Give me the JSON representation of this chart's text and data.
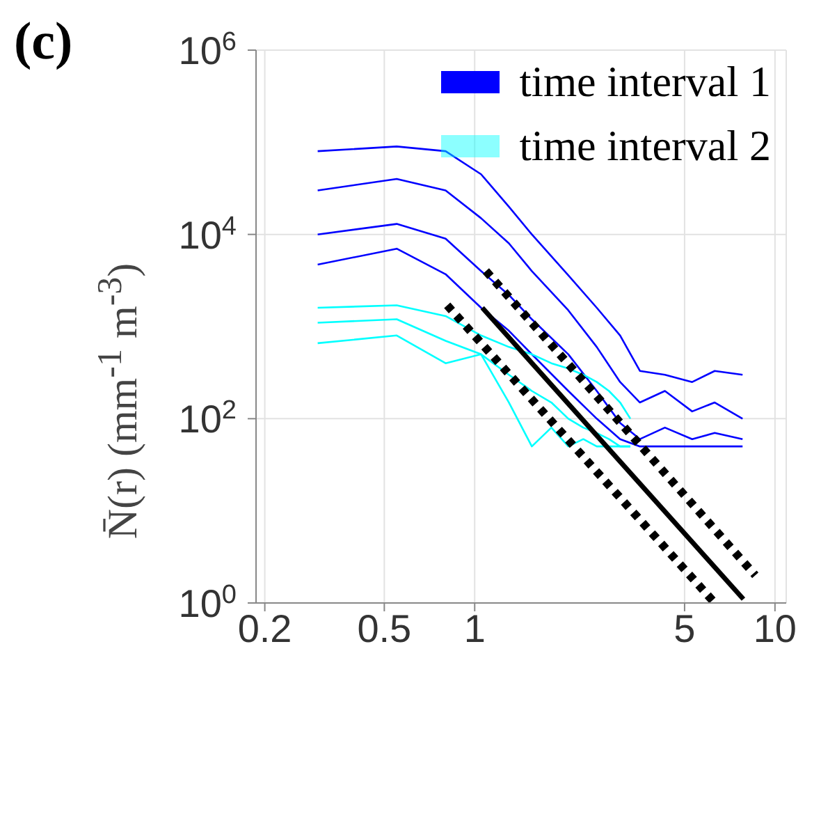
{
  "chart_data": {
    "type": "line",
    "title": "(c)",
    "ylabel": "N̄(r) (mm$^{-1}$ m$^{-3}$)",
    "log": "xy",
    "grid": true,
    "legend": "top right",
    "line_style": "solid",
    "marker": "none",
    "xlim": [
      0.187,
      10.9
    ],
    "xticks": [
      0.2,
      0.5,
      1,
      5,
      10
    ],
    "ylim": [
      1,
      1000000
    ],
    "yticks": [
      {
        "value": 1,
        "label": "10$^{0}$"
      },
      {
        "value": 100,
        "label": "10$^{2}$"
      },
      {
        "value": 10000,
        "label": "10$^{4}$"
      },
      {
        "value": 1000000,
        "label": "10$^{6}$"
      }
    ],
    "series": [
      {
        "name": "time interval 1",
        "color": "#0000ff",
        "x": [
          0.3,
          0.55,
          0.8,
          1.05,
          1.3,
          1.55,
          2.05,
          2.55,
          3.05,
          3.55,
          4.3,
          5.3,
          6.3,
          7.8
        ],
        "values": [
          80000,
          90000,
          80000,
          45000,
          20000,
          10000,
          3600,
          1600,
          800,
          330,
          300,
          250,
          330,
          300
        ]
      },
      {
        "color": "#0000ff",
        "x": [
          0.3,
          0.55,
          0.8,
          1.05,
          1.3,
          1.55,
          2.05,
          2.55,
          3.05,
          3.55,
          4.3,
          5.3,
          6.3,
          7.8
        ],
        "values": [
          30000,
          40000,
          30000,
          15000,
          8000,
          4000,
          1500,
          600,
          250,
          150,
          200,
          120,
          150,
          100
        ]
      },
      {
        "color": "#0000ff",
        "x": [
          0.3,
          0.55,
          0.8,
          1.05,
          1.3,
          1.55,
          2.05,
          2.55,
          3.05,
          3.55,
          4.3,
          5.3,
          6.3,
          7.8
        ],
        "values": [
          10000,
          13000,
          9000,
          4000,
          2200,
          1200,
          500,
          200,
          90,
          60,
          80,
          60,
          70,
          60
        ]
      },
      {
        "color": "#0000ff",
        "x": [
          0.3,
          0.55,
          0.8,
          1.05,
          1.3,
          1.55,
          2.05,
          2.55,
          3.05,
          3.55,
          4.3,
          5.3,
          6.3,
          7.8
        ],
        "values": [
          4700,
          7000,
          3700,
          1600,
          900,
          500,
          200,
          100,
          60,
          50,
          50,
          50,
          50,
          50
        ]
      },
      {
        "name": "time interval 2",
        "color": "#00ffff",
        "x": [
          0.3,
          0.55,
          0.8,
          1.05,
          1.3,
          1.55,
          1.8,
          2.05,
          2.3,
          2.55,
          2.8,
          3.05,
          3.3
        ],
        "values": [
          1600,
          1700,
          1300,
          800,
          600,
          500,
          400,
          350,
          300,
          250,
          200,
          150,
          100
        ]
      },
      {
        "color": "#00ffff",
        "x": [
          0.3,
          0.55,
          0.8,
          1.05,
          1.3,
          1.55,
          1.8,
          2.05,
          2.3,
          2.55,
          2.8,
          3.05,
          3.3
        ],
        "values": [
          1100,
          1200,
          700,
          500,
          300,
          200,
          150,
          100,
          80,
          70,
          60,
          50,
          50
        ]
      },
      {
        "color": "#00ffff",
        "x": [
          0.3,
          0.55,
          0.8,
          1.05,
          1.3,
          1.55,
          1.8,
          2.05,
          2.3,
          2.55,
          2.8,
          3.05,
          3.3
        ],
        "values": [
          660,
          800,
          400,
          500,
          150,
          50,
          80,
          50,
          60,
          50,
          50,
          50,
          50
        ]
      },
      {
        "color": "#000000",
        "x": [
          1.06,
          7.85
        ],
        "values": [
          1600,
          1.1
        ]
      },
      {
        "color": "#000000",
        "line_style": "dotted",
        "x": [
          1.09,
          8.6
        ],
        "values": [
          4000,
          2
        ]
      },
      {
        "color": "#000000",
        "line_style": "dotted",
        "x": [
          0.81,
          6.3
        ],
        "values": [
          1700,
          1
        ]
      }
    ]
  }
}
